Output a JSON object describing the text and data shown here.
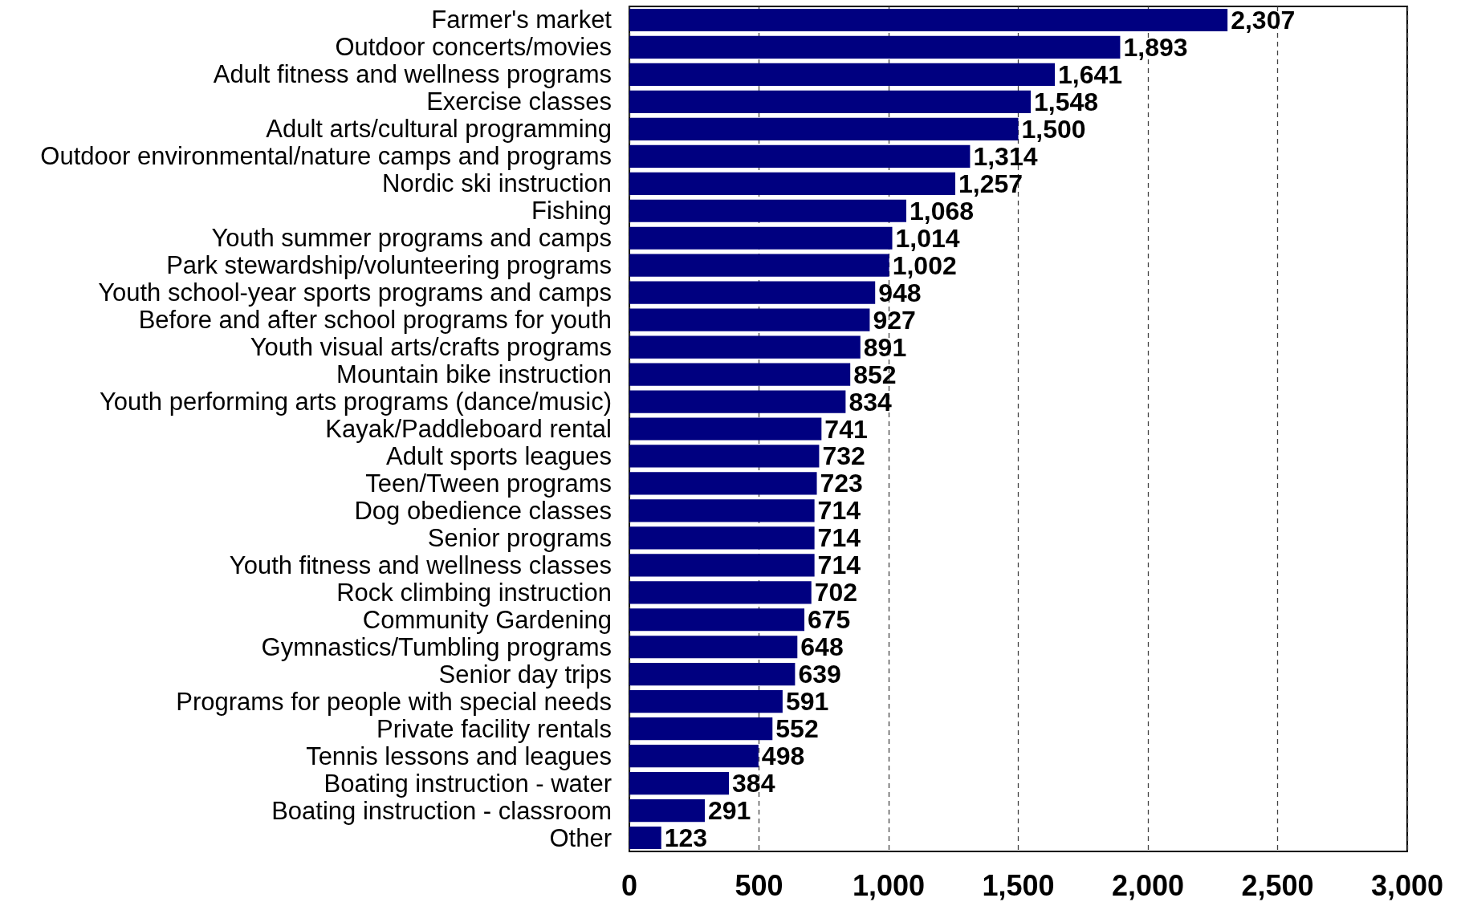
{
  "chart_data": {
    "type": "bar",
    "orientation": "horizontal",
    "categories": [
      "Farmer's market",
      "Outdoor concerts/movies",
      "Adult fitness and wellness programs",
      "Exercise classes",
      "Adult arts/cultural programming",
      "Outdoor environmental/nature camps and programs",
      "Nordic ski instruction",
      "Fishing",
      "Youth summer programs and camps",
      "Park stewardship/volunteering programs",
      "Youth school-year sports programs and camps",
      "Before and after school programs for youth",
      "Youth visual arts/crafts programs",
      "Mountain bike instruction",
      "Youth performing arts programs (dance/music)",
      "Kayak/Paddleboard rental",
      "Adult sports leagues",
      "Teen/Tween programs",
      "Dog obedience classes",
      "Senior programs",
      "Youth fitness and wellness classes",
      "Rock climbing instruction",
      "Community Gardening",
      "Gymnastics/Tumbling programs",
      "Senior day trips",
      "Programs for people with special needs",
      "Private facility rentals",
      "Tennis lessons and leagues",
      "Boating instruction - water",
      "Boating instruction - classroom",
      "Other"
    ],
    "values": [
      2307,
      1893,
      1641,
      1548,
      1500,
      1314,
      1257,
      1068,
      1014,
      1002,
      948,
      927,
      891,
      852,
      834,
      741,
      732,
      723,
      714,
      714,
      714,
      702,
      675,
      648,
      639,
      591,
      552,
      498,
      384,
      291,
      123
    ],
    "value_labels": [
      "2,307",
      "1,893",
      "1,641",
      "1,548",
      "1,500",
      "1,314",
      "1,257",
      "1,068",
      "1,014",
      "1,002",
      "948",
      "927",
      "891",
      "852",
      "834",
      "741",
      "732",
      "723",
      "714",
      "714",
      "714",
      "702",
      "675",
      "648",
      "639",
      "591",
      "552",
      "498",
      "384",
      "291",
      "123"
    ],
    "color": "#000080",
    "xlim": [
      0,
      3000
    ],
    "xticks": [
      0,
      500,
      {
        "value": 1000,
        "label": "1,000"
      },
      {
        "value": 1500,
        "label": "1,500"
      },
      {
        "value": 2000,
        "label": "2,000"
      },
      {
        "value": 2500,
        "label": "2,500"
      },
      {
        "value": 3000,
        "label": "3,000"
      }
    ],
    "grid": "x"
  }
}
